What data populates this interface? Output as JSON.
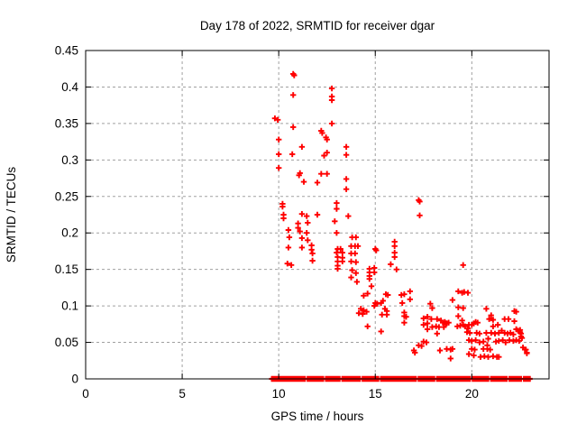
{
  "colors": {
    "marker": "#ff0000",
    "grid": "#a0a0a0",
    "axis": "#000000",
    "background": "#ffffff"
  },
  "chart_data": {
    "type": "scatter",
    "title": "Day 178 of 2022, SRMTID for receiver dgar",
    "xlabel": "GPS time / hours",
    "ylabel": "SRMTID / TECUs",
    "xlim": [
      0,
      24
    ],
    "ylim": [
      0,
      0.45
    ],
    "xticks": [
      0,
      5,
      10,
      15,
      20
    ],
    "yticks": [
      0,
      0.05,
      0.1,
      0.15,
      0.2,
      0.25,
      0.3,
      0.35,
      0.4,
      0.45
    ],
    "ytick_labels": [
      "0",
      "0.05",
      "0.1",
      "0.15",
      "0.2",
      "0.25",
      "0.3",
      "0.35",
      "0.4",
      "0.45"
    ],
    "grid": true,
    "legend": "none",
    "marker": "plus",
    "points": [
      [
        9.8,
        0.357
      ],
      [
        9.95,
        0.355
      ],
      [
        10.0,
        0.328
      ],
      [
        10.0,
        0.308
      ],
      [
        10.0,
        0.289
      ],
      [
        10.2,
        0.24
      ],
      [
        10.2,
        0.236
      ],
      [
        10.25,
        0.225
      ],
      [
        10.25,
        0.22
      ],
      [
        10.5,
        0.204
      ],
      [
        10.55,
        0.194
      ],
      [
        10.5,
        0.18
      ],
      [
        10.45,
        0.158
      ],
      [
        10.65,
        0.156
      ],
      [
        10.75,
        0.418
      ],
      [
        10.8,
        0.416
      ],
      [
        10.75,
        0.389
      ],
      [
        10.75,
        0.345
      ],
      [
        10.7,
        0.308
      ],
      [
        11.2,
        0.318
      ],
      [
        11.1,
        0.282
      ],
      [
        11.05,
        0.279
      ],
      [
        11.3,
        0.27
      ],
      [
        11.2,
        0.226
      ],
      [
        11.45,
        0.223
      ],
      [
        11.5,
        0.214
      ],
      [
        11.0,
        0.213
      ],
      [
        11.0,
        0.207
      ],
      [
        11.1,
        0.202
      ],
      [
        11.2,
        0.193
      ],
      [
        11.45,
        0.2
      ],
      [
        11.5,
        0.19
      ],
      [
        11.2,
        0.18
      ],
      [
        11.7,
        0.183
      ],
      [
        11.7,
        0.177
      ],
      [
        11.75,
        0.172
      ],
      [
        11.75,
        0.162
      ],
      [
        12.2,
        0.34
      ],
      [
        12.25,
        0.337
      ],
      [
        12.45,
        0.331
      ],
      [
        12.5,
        0.328
      ],
      [
        12.5,
        0.31
      ],
      [
        12.35,
        0.306
      ],
      [
        12.2,
        0.281
      ],
      [
        12.5,
        0.281
      ],
      [
        12.0,
        0.269
      ],
      [
        12.0,
        0.225
      ],
      [
        12.75,
        0.398
      ],
      [
        12.75,
        0.387
      ],
      [
        12.75,
        0.382
      ],
      [
        12.75,
        0.35
      ],
      [
        12.9,
        0.216
      ],
      [
        13.0,
        0.241
      ],
      [
        13.0,
        0.233
      ],
      [
        13.0,
        0.2
      ],
      [
        13.05,
        0.178
      ],
      [
        13.2,
        0.178
      ],
      [
        13.0,
        0.173
      ],
      [
        13.3,
        0.173
      ],
      [
        13.05,
        0.167
      ],
      [
        13.3,
        0.166
      ],
      [
        13.05,
        0.161
      ],
      [
        13.3,
        0.161
      ],
      [
        13.05,
        0.155
      ],
      [
        13.05,
        0.151
      ],
      [
        13.5,
        0.318
      ],
      [
        13.5,
        0.307
      ],
      [
        13.5,
        0.274
      ],
      [
        13.5,
        0.26
      ],
      [
        13.6,
        0.223
      ],
      [
        13.8,
        0.194
      ],
      [
        14.0,
        0.194
      ],
      [
        13.75,
        0.182
      ],
      [
        13.95,
        0.182
      ],
      [
        14.1,
        0.182
      ],
      [
        13.75,
        0.172
      ],
      [
        13.95,
        0.172
      ],
      [
        13.75,
        0.161
      ],
      [
        14.0,
        0.16
      ],
      [
        13.8,
        0.149
      ],
      [
        14.0,
        0.145
      ],
      [
        13.75,
        0.139
      ],
      [
        14.05,
        0.133
      ],
      [
        14.25,
        0.096
      ],
      [
        14.4,
        0.094
      ],
      [
        14.15,
        0.09
      ],
      [
        14.35,
        0.089
      ],
      [
        14.55,
        0.092
      ],
      [
        14.4,
        0.114
      ],
      [
        14.6,
        0.117
      ],
      [
        14.6,
        0.072
      ],
      [
        14.7,
        0.151
      ],
      [
        14.95,
        0.152
      ],
      [
        14.7,
        0.146
      ],
      [
        14.95,
        0.146
      ],
      [
        14.7,
        0.141
      ],
      [
        14.7,
        0.137
      ],
      [
        14.8,
        0.127
      ],
      [
        15.0,
        0.178
      ],
      [
        15.05,
        0.176
      ],
      [
        15.1,
        0.103
      ],
      [
        14.95,
        0.1
      ],
      [
        15.0,
        0.104
      ],
      [
        15.3,
        0.104
      ],
      [
        15.4,
        0.107
      ],
      [
        15.55,
        0.116
      ],
      [
        15.65,
        0.115
      ],
      [
        15.5,
        0.096
      ],
      [
        15.6,
        0.093
      ],
      [
        15.35,
        0.088
      ],
      [
        15.6,
        0.088
      ],
      [
        15.3,
        0.065
      ],
      [
        15.8,
        0.157
      ],
      [
        16.0,
        0.188
      ],
      [
        16.0,
        0.182
      ],
      [
        16.0,
        0.173
      ],
      [
        16.0,
        0.167
      ],
      [
        16.1,
        0.15
      ],
      [
        16.35,
        0.115
      ],
      [
        16.5,
        0.116
      ],
      [
        16.8,
        0.12
      ],
      [
        16.8,
        0.109
      ],
      [
        16.4,
        0.104
      ],
      [
        16.5,
        0.091
      ],
      [
        16.5,
        0.086
      ],
      [
        16.6,
        0.085
      ],
      [
        16.5,
        0.077
      ],
      [
        17.25,
        0.245
      ],
      [
        17.3,
        0.243
      ],
      [
        17.3,
        0.224
      ],
      [
        17.0,
        0.039
      ],
      [
        17.05,
        0.036
      ],
      [
        17.25,
        0.046
      ],
      [
        17.4,
        0.045
      ],
      [
        17.5,
        0.083
      ],
      [
        17.7,
        0.085
      ],
      [
        17.9,
        0.082
      ],
      [
        17.85,
        0.103
      ],
      [
        17.95,
        0.097
      ],
      [
        17.5,
        0.074
      ],
      [
        17.7,
        0.076
      ],
      [
        17.7,
        0.068
      ],
      [
        17.5,
        0.051
      ],
      [
        17.65,
        0.05
      ],
      [
        17.95,
        0.071
      ],
      [
        18.2,
        0.082
      ],
      [
        18.4,
        0.08
      ],
      [
        18.6,
        0.078
      ],
      [
        18.7,
        0.076
      ],
      [
        18.15,
        0.072
      ],
      [
        18.3,
        0.071
      ],
      [
        18.2,
        0.062
      ],
      [
        18.5,
        0.077
      ],
      [
        18.65,
        0.076
      ],
      [
        18.8,
        0.077
      ],
      [
        18.35,
        0.039
      ],
      [
        18.55,
        0.071
      ],
      [
        18.7,
        0.041
      ],
      [
        18.9,
        0.04
      ],
      [
        19.0,
        0.041
      ],
      [
        18.9,
        0.028
      ],
      [
        19.3,
        0.12
      ],
      [
        19.5,
        0.118
      ],
      [
        19.6,
        0.119
      ],
      [
        19.8,
        0.118
      ],
      [
        19.0,
        0.108
      ],
      [
        19.3,
        0.098
      ],
      [
        19.55,
        0.097
      ],
      [
        19.3,
        0.086
      ],
      [
        19.55,
        0.156
      ],
      [
        19.25,
        0.072
      ],
      [
        19.4,
        0.073
      ],
      [
        19.55,
        0.074
      ],
      [
        19.65,
        0.072
      ],
      [
        19.5,
        0.08
      ],
      [
        19.75,
        0.064
      ],
      [
        19.9,
        0.063
      ],
      [
        19.8,
        0.069
      ],
      [
        19.85,
        0.074
      ],
      [
        20.0,
        0.074
      ],
      [
        19.85,
        0.053
      ],
      [
        20.0,
        0.052
      ],
      [
        19.85,
        0.034
      ],
      [
        20.1,
        0.032
      ],
      [
        20.2,
        0.078
      ],
      [
        20.3,
        0.077
      ],
      [
        20.1,
        0.076
      ],
      [
        20.25,
        0.063
      ],
      [
        20.4,
        0.062
      ],
      [
        20.45,
        0.03
      ],
      [
        20.65,
        0.031
      ],
      [
        20.85,
        0.03
      ],
      [
        20.2,
        0.053
      ],
      [
        20.4,
        0.05
      ],
      [
        20.6,
        0.051
      ],
      [
        20.75,
        0.096
      ],
      [
        20.85,
        0.055
      ],
      [
        20.8,
        0.046
      ],
      [
        20.8,
        0.041
      ],
      [
        20.95,
        0.04
      ],
      [
        20.0,
        0.041
      ],
      [
        20.15,
        0.04
      ],
      [
        20.6,
        0.041
      ],
      [
        20.75,
        0.063
      ],
      [
        21.0,
        0.087
      ],
      [
        21.1,
        0.081
      ],
      [
        21.0,
        0.083
      ],
      [
        20.9,
        0.082
      ],
      [
        21.1,
        0.072
      ],
      [
        21.35,
        0.074
      ],
      [
        21.0,
        0.063
      ],
      [
        21.2,
        0.062
      ],
      [
        21.4,
        0.063
      ],
      [
        21.55,
        0.066
      ],
      [
        21.7,
        0.063
      ],
      [
        21.85,
        0.062
      ],
      [
        22.0,
        0.063
      ],
      [
        22.15,
        0.061
      ],
      [
        21.7,
        0.082
      ],
      [
        21.9,
        0.082
      ],
      [
        21.25,
        0.051
      ],
      [
        21.4,
        0.052
      ],
      [
        21.6,
        0.053
      ],
      [
        21.75,
        0.05
      ],
      [
        21.95,
        0.053
      ],
      [
        21.1,
        0.031
      ],
      [
        21.3,
        0.03
      ],
      [
        21.4,
        0.03
      ],
      [
        22.2,
        0.093
      ],
      [
        22.3,
        0.092
      ],
      [
        22.2,
        0.079
      ],
      [
        22.3,
        0.068
      ],
      [
        22.5,
        0.067
      ],
      [
        22.4,
        0.066
      ],
      [
        22.5,
        0.064
      ],
      [
        22.15,
        0.052
      ],
      [
        22.3,
        0.053
      ],
      [
        22.45,
        0.052
      ],
      [
        22.55,
        0.062
      ],
      [
        22.55,
        0.058
      ],
      [
        22.6,
        0.056
      ],
      [
        22.65,
        0.043
      ],
      [
        22.75,
        0.04
      ],
      [
        22.8,
        0.04
      ],
      [
        22.85,
        0.036
      ],
      [
        22.85,
        0.035
      ]
    ],
    "zero_row": {
      "y": 0,
      "step": 0.1,
      "segments": [
        [
          9.65,
          10.45
        ],
        [
          10.55,
          11.35
        ],
        [
          11.5,
          12.3
        ],
        [
          12.45,
          13.15
        ],
        [
          13.3,
          14.2
        ],
        [
          14.35,
          15.15
        ],
        [
          15.3,
          16.2
        ],
        [
          16.3,
          17.1
        ],
        [
          17.25,
          18.05
        ],
        [
          18.2,
          19.0
        ],
        [
          19.1,
          19.9
        ],
        [
          20.05,
          20.85
        ],
        [
          21.0,
          21.8
        ],
        [
          21.95,
          22.55
        ],
        [
          22.7,
          23.0
        ]
      ]
    }
  }
}
